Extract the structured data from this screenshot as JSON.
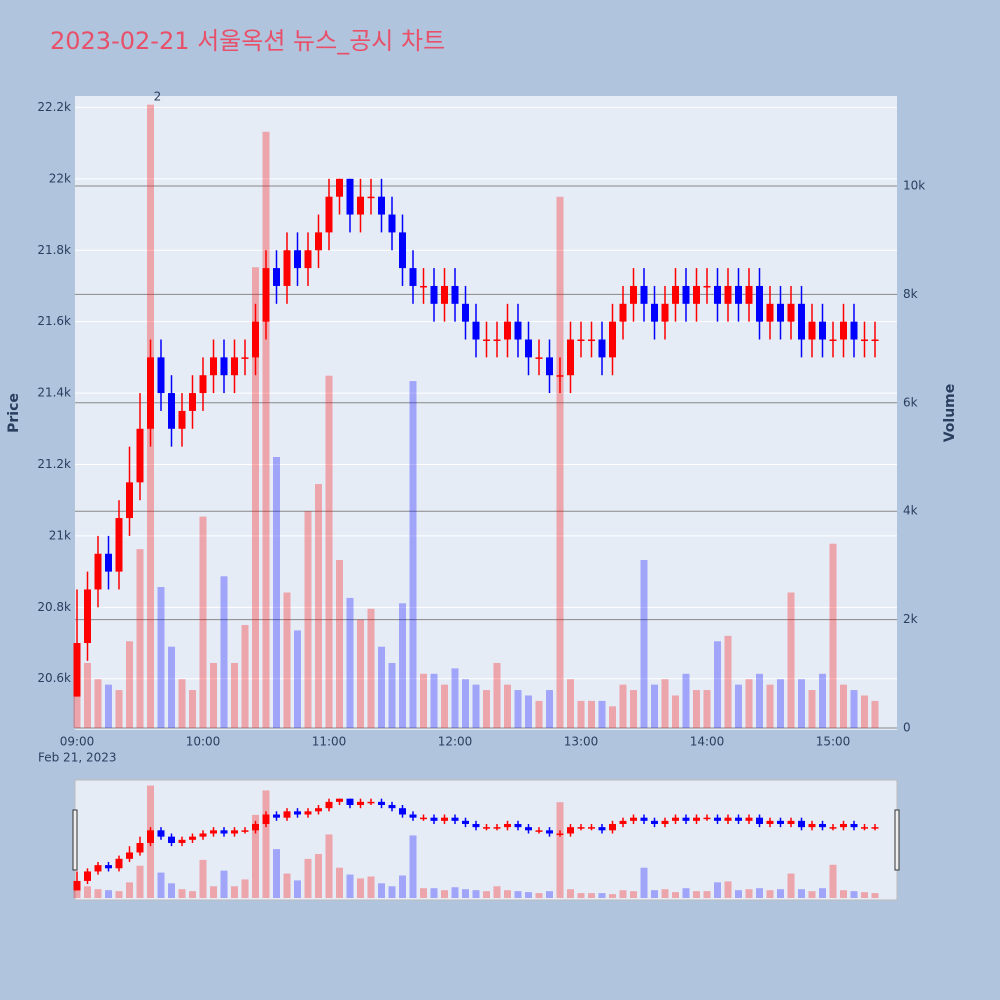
{
  "chart_data": {
    "type": "candlestick",
    "title": "2023-02-21 서울옥션 뉴스_공시 차트",
    "y_label": "Price",
    "y2_label": "Volume",
    "date_label": "Feb 21, 2023",
    "increasing_color": "#ff0000",
    "decreasing_color": "#0000ff",
    "x": [
      "09:00",
      "09:05",
      "09:10",
      "09:15",
      "09:20",
      "09:25",
      "09:30",
      "09:35",
      "09:40",
      "09:45",
      "09:50",
      "09:55",
      "10:00",
      "10:05",
      "10:10",
      "10:15",
      "10:20",
      "10:25",
      "10:30",
      "10:35",
      "10:40",
      "10:45",
      "10:50",
      "10:55",
      "11:00",
      "11:05",
      "11:10",
      "11:15",
      "11:20",
      "11:25",
      "11:30",
      "11:35",
      "11:40",
      "11:45",
      "11:50",
      "11:55",
      "12:00",
      "12:05",
      "12:10",
      "12:15",
      "12:20",
      "12:25",
      "12:30",
      "12:35",
      "12:40",
      "12:45",
      "12:50",
      "12:55",
      "13:00",
      "13:05",
      "13:10",
      "13:15",
      "13:20",
      "13:25",
      "13:30",
      "13:35",
      "13:40",
      "13:45",
      "13:50",
      "13:55",
      "14:00",
      "14:05",
      "14:10",
      "14:15",
      "14:20",
      "14:25",
      "14:30",
      "14:35",
      "14:40",
      "14:45",
      "14:50",
      "14:55",
      "15:00",
      "15:05",
      "15:10",
      "15:15",
      "15:20"
    ],
    "open": [
      20550,
      20700,
      20850,
      20950,
      20900,
      21050,
      21150,
      21300,
      21500,
      21400,
      21300,
      21350,
      21400,
      21450,
      21500,
      21450,
      21500,
      21500,
      21600,
      21750,
      21700,
      21800,
      21750,
      21800,
      21850,
      21950,
      22000,
      21900,
      21950,
      21950,
      21900,
      21850,
      21750,
      21700,
      21700,
      21650,
      21700,
      21650,
      21600,
      21550,
      21550,
      21550,
      21600,
      21550,
      21500,
      21500,
      21450,
      21450,
      21550,
      21550,
      21550,
      21500,
      21600,
      21650,
      21700,
      21650,
      21600,
      21650,
      21700,
      21650,
      21700,
      21700,
      21650,
      21700,
      21650,
      21700,
      21600,
      21650,
      21600,
      21650,
      21550,
      21600,
      21550,
      21550,
      21600,
      21550,
      21550
    ],
    "high": [
      20850,
      20900,
      21000,
      21000,
      21100,
      21250,
      21400,
      21550,
      21550,
      21450,
      21400,
      21450,
      21500,
      21550,
      21550,
      21550,
      21550,
      21650,
      21800,
      21800,
      21850,
      21850,
      21850,
      21900,
      22000,
      22000,
      22000,
      22000,
      22000,
      22000,
      21950,
      21900,
      21800,
      21750,
      21750,
      21750,
      21750,
      21700,
      21650,
      21600,
      21600,
      21650,
      21650,
      21600,
      21550,
      21550,
      21500,
      21600,
      21600,
      21600,
      21600,
      21650,
      21700,
      21750,
      21750,
      21700,
      21700,
      21750,
      21750,
      21750,
      21750,
      21750,
      21750,
      21750,
      21750,
      21750,
      21700,
      21700,
      21700,
      21700,
      21650,
      21650,
      21600,
      21650,
      21650,
      21600,
      21600
    ],
    "low": [
      20550,
      20650,
      20800,
      20850,
      20850,
      21000,
      21100,
      21250,
      21350,
      21250,
      21250,
      21300,
      21350,
      21400,
      21400,
      21400,
      21450,
      21450,
      21550,
      21650,
      21650,
      21700,
      21700,
      21750,
      21800,
      21900,
      21850,
      21850,
      21900,
      21850,
      21800,
      21700,
      21650,
      21650,
      21600,
      21600,
      21600,
      21550,
      21500,
      21500,
      21500,
      21500,
      21500,
      21450,
      21450,
      21400,
      21400,
      21400,
      21500,
      21500,
      21450,
      21450,
      21550,
      21600,
      21600,
      21550,
      21550,
      21600,
      21600,
      21600,
      21650,
      21600,
      21600,
      21600,
      21600,
      21550,
      21550,
      21550,
      21550,
      21500,
      21500,
      21500,
      21500,
      21500,
      21500,
      21500,
      21500
    ],
    "close": [
      20700,
      20850,
      20950,
      20900,
      21050,
      21150,
      21300,
      21500,
      21400,
      21300,
      21350,
      21400,
      21450,
      21500,
      21450,
      21500,
      21500,
      21600,
      21750,
      21700,
      21800,
      21750,
      21800,
      21850,
      21950,
      22000,
      21900,
      21950,
      21950,
      21900,
      21850,
      21750,
      21700,
      21700,
      21650,
      21700,
      21650,
      21600,
      21550,
      21550,
      21550,
      21600,
      21550,
      21500,
      21500,
      21450,
      21450,
      21550,
      21550,
      21550,
      21500,
      21600,
      21650,
      21700,
      21650,
      21600,
      21650,
      21700,
      21650,
      21700,
      21700,
      21650,
      21700,
      21650,
      21700,
      21600,
      21650,
      21600,
      21650,
      21550,
      21600,
      21550,
      21550,
      21600,
      21550,
      21550,
      21550
    ],
    "volume": [
      1500,
      1200,
      900,
      800,
      700,
      1600,
      3300,
      11500,
      2600,
      1500,
      900,
      700,
      3900,
      1200,
      2800,
      1200,
      1900,
      8500,
      11000,
      5000,
      2500,
      1800,
      4000,
      4500,
      6500,
      3100,
      2400,
      2000,
      2200,
      1500,
      1200,
      2300,
      6400,
      1000,
      1000,
      800,
      1100,
      900,
      800,
      700,
      1200,
      800,
      700,
      600,
      500,
      700,
      9800,
      900,
      500,
      500,
      500,
      400,
      800,
      700,
      3100,
      800,
      900,
      600,
      1000,
      700,
      700,
      1600,
      1700,
      800,
      900,
      1000,
      800,
      900,
      2500,
      900,
      700,
      1000,
      3400,
      800,
      700,
      600,
      500
    ],
    "annotations": [
      {
        "text": "2",
        "x": "09:35"
      }
    ],
    "xticks": [
      "09:00",
      "10:00",
      "11:00",
      "12:00",
      "13:00",
      "14:00",
      "15:00"
    ],
    "ylim": [
      20462,
      22232
    ],
    "yticks": [
      {
        "value": 20600,
        "label": "20.6k"
      },
      {
        "value": 20800,
        "label": "20.8k"
      },
      {
        "value": 21000,
        "label": "21k"
      },
      {
        "value": 21200,
        "label": "21.2k"
      },
      {
        "value": 21400,
        "label": "21.4k"
      },
      {
        "value": 21600,
        "label": "21.6k"
      },
      {
        "value": 21800,
        "label": "21.8k"
      },
      {
        "value": 22000,
        "label": "22k"
      },
      {
        "value": 22200,
        "label": "22.2k"
      }
    ],
    "y2lim": [
      0,
      11660
    ],
    "y2ticks": [
      0,
      {
        "value": 2000,
        "label": "2k"
      },
      {
        "value": 4000,
        "label": "4k"
      },
      {
        "value": 6000,
        "label": "6k"
      },
      {
        "value": 8000,
        "label": "8k"
      },
      {
        "value": 10000,
        "label": "10k"
      }
    ]
  }
}
